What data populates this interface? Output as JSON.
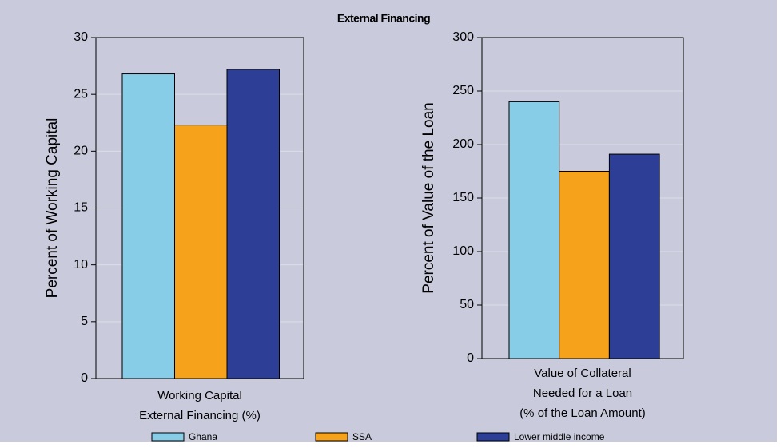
{
  "title": "External Financing",
  "legend": {
    "names": [
      "Ghana",
      "SSA",
      "Lower middle income"
    ],
    "colors": [
      "#87cde8",
      "#f7a21b",
      "#2d3e96"
    ]
  },
  "chart_data": [
    {
      "type": "bar",
      "ylabel": "Percent of Working Capital",
      "categories": [
        [
          "Working Capital",
          "External Financing (%)"
        ]
      ],
      "series": [
        {
          "values": [
            26.8
          ]
        },
        {
          "values": [
            22.3
          ]
        },
        {
          "values": [
            27.2
          ]
        }
      ],
      "ylim": [
        0,
        30
      ],
      "yticks": [
        0,
        5,
        10,
        15,
        20,
        25,
        30
      ],
      "grid": true
    },
    {
      "type": "bar",
      "ylabel": "Percent of Value of the Loan",
      "categories": [
        [
          "Value of Collateral",
          "Needed for a Loan",
          "(% of the Loan Amount)"
        ]
      ],
      "series": [
        {
          "values": [
            240
          ]
        },
        {
          "values": [
            175
          ]
        },
        {
          "values": [
            191
          ]
        }
      ],
      "ylim": [
        0,
        300
      ],
      "yticks": [
        0,
        50,
        100,
        150,
        200,
        250,
        300
      ],
      "grid": true
    }
  ]
}
